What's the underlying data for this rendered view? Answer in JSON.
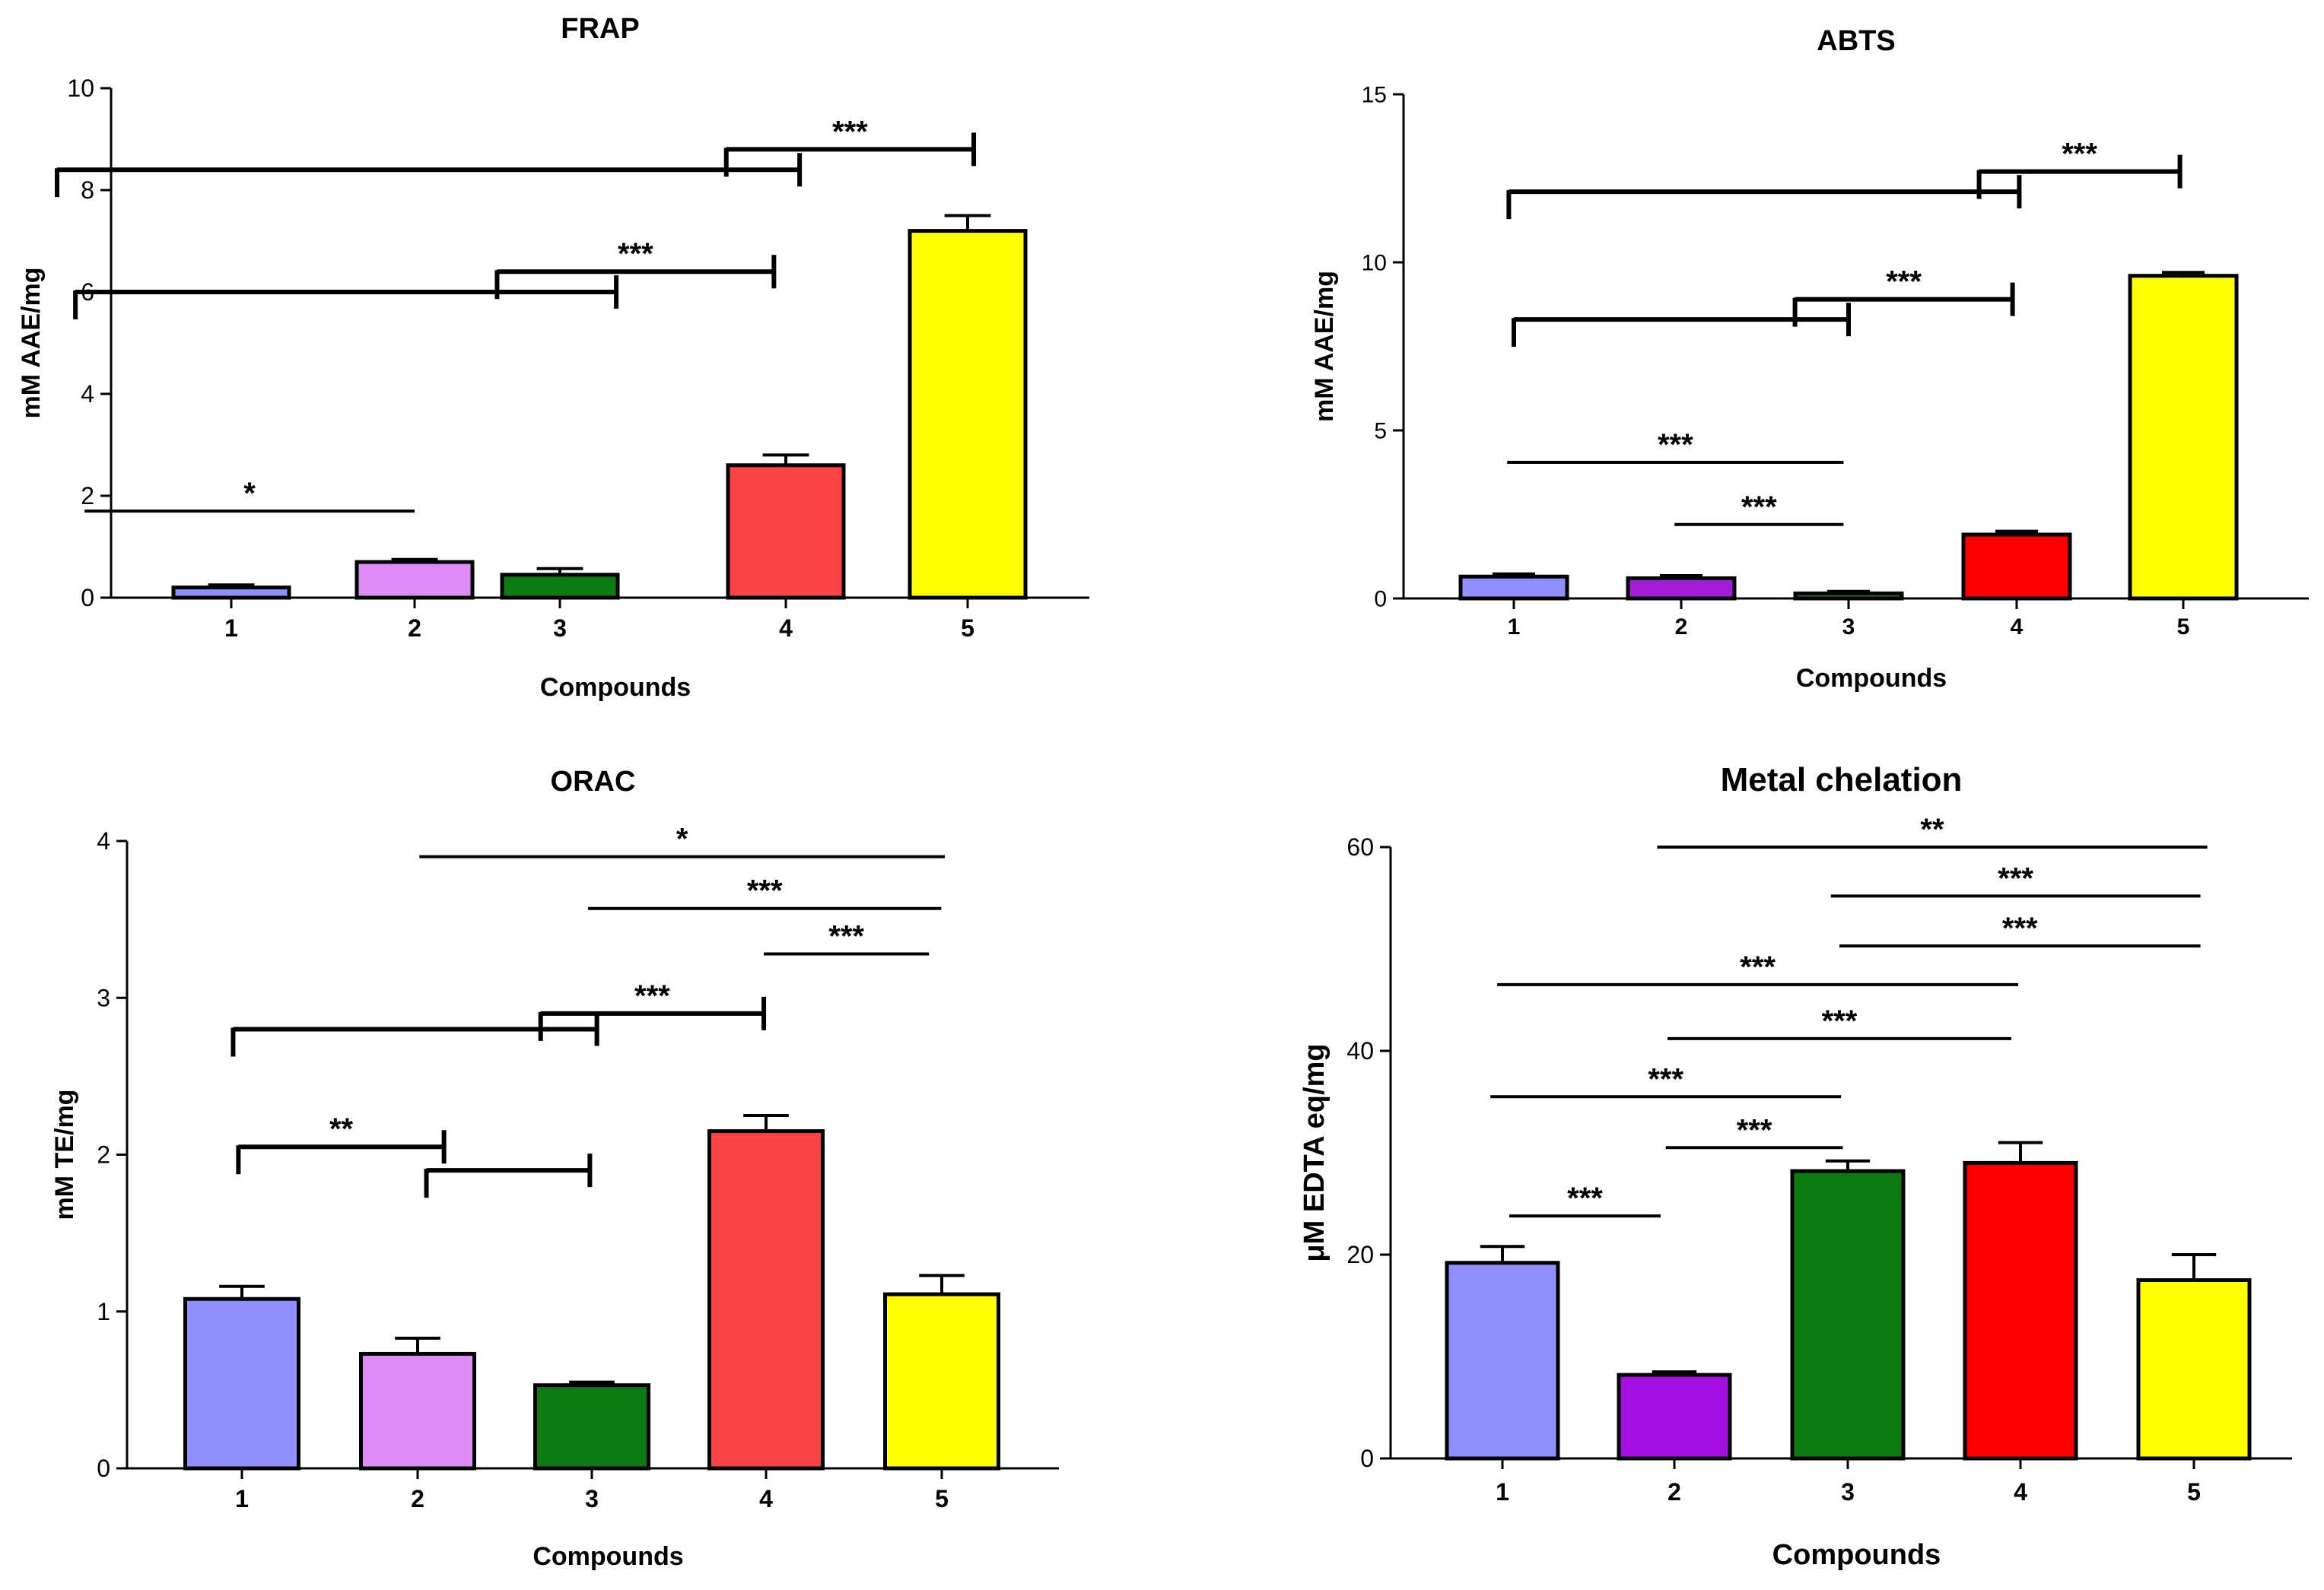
{
  "chart_data": [
    {
      "id": "frap",
      "type": "bar",
      "title": "FRAP",
      "xlabel": "Compounds",
      "ylabel": "mM AAE/mg",
      "ylim": [
        0,
        10
      ],
      "yticks": [
        0,
        2,
        4,
        6,
        8,
        10
      ],
      "categories": [
        "1",
        "2",
        "3",
        "4",
        "5"
      ],
      "values": [
        0.2,
        0.7,
        0.45,
        2.6,
        7.2
      ],
      "errors": [
        0.05,
        0.05,
        0.12,
        0.2,
        0.3
      ],
      "colors": [
        "#8f8fff",
        "#de8af7",
        "#0c7c12",
        "#fa4346",
        "#ffff00"
      ],
      "significance": [
        {
          "label": "*",
          "from": 0.2,
          "to": 2.0,
          "y": 1.7,
          "style": "line"
        },
        {
          "label": "",
          "from": 0.15,
          "to": 3.1,
          "y": 6.0,
          "style": "bracket"
        },
        {
          "label": "***",
          "from": 2.45,
          "to": 3.96,
          "y": 6.4,
          "style": "bracket"
        },
        {
          "label": "",
          "from": 0.05,
          "to": 4.1,
          "y": 8.4,
          "style": "bracket"
        },
        {
          "label": "***",
          "from": 3.7,
          "to": 5.05,
          "y": 8.8,
          "style": "bracket"
        }
      ]
    },
    {
      "id": "abts",
      "type": "bar",
      "title": "ABTS",
      "xlabel": "Compounds",
      "ylabel": "mM AAE/mg",
      "ylim": [
        0,
        15
      ],
      "yticks": [
        0,
        5,
        10,
        15
      ],
      "categories": [
        "1",
        "2",
        "3",
        "4",
        "5"
      ],
      "values": [
        0.65,
        0.6,
        0.15,
        1.9,
        9.6
      ],
      "errors": [
        0.08,
        0.08,
        0.06,
        0.1,
        0.1
      ],
      "colors": [
        "#8f8fff",
        "#a41bd8",
        "#0c7c12",
        "#ff0000",
        "#ffff00"
      ],
      "significance": [
        {
          "label": "***",
          "from": 0.96,
          "to": 2.97,
          "y": 4.05,
          "style": "line"
        },
        {
          "label": "***",
          "from": 1.96,
          "to": 2.97,
          "y": 2.2,
          "style": "line"
        },
        {
          "label": "",
          "from": 1.0,
          "to": 3.0,
          "y": 8.3,
          "style": "bracket"
        },
        {
          "label": "***",
          "from": 2.68,
          "to": 3.98,
          "y": 8.9,
          "style": "bracket"
        },
        {
          "label": "",
          "from": 0.97,
          "to": 4.02,
          "y": 12.1,
          "style": "bracket"
        },
        {
          "label": "***",
          "from": 3.78,
          "to": 4.98,
          "y": 12.7,
          "style": "bracket"
        }
      ]
    },
    {
      "id": "orac",
      "type": "bar",
      "title": "ORAC",
      "xlabel": "Compounds",
      "ylabel": "mM TE/mg",
      "ylim": [
        0,
        4
      ],
      "yticks": [
        0,
        1,
        2,
        3,
        4
      ],
      "categories": [
        "1",
        "2",
        "3",
        "4",
        "5"
      ],
      "values": [
        1.08,
        0.73,
        0.53,
        2.15,
        1.11
      ],
      "errors": [
        0.08,
        0.1,
        0.02,
        0.1,
        0.12
      ],
      "colors": [
        "#8f8fff",
        "#de8af7",
        "#0c7c12",
        "#fa4346",
        "#ffff00"
      ],
      "significance": [
        {
          "label": "**",
          "from": 0.98,
          "to": 2.15,
          "y": 2.05,
          "style": "bracket"
        },
        {
          "label": "",
          "from": 2.05,
          "to": 2.98,
          "y": 1.9,
          "style": "bracket"
        },
        {
          "label": "",
          "from": 0.95,
          "to": 3.02,
          "y": 2.8,
          "style": "bracket"
        },
        {
          "label": "***",
          "from": 2.7,
          "to": 3.97,
          "y": 2.9,
          "style": "bracket"
        },
        {
          "label": "***",
          "from": 3.97,
          "to": 4.91,
          "y": 3.28,
          "style": "line"
        },
        {
          "label": "***",
          "from": 2.97,
          "to": 4.98,
          "y": 3.57,
          "style": "line"
        },
        {
          "label": "*",
          "from": 2.01,
          "to": 5.0,
          "y": 3.9,
          "style": "line"
        }
      ]
    },
    {
      "id": "metal",
      "type": "bar",
      "title": "Metal chelation",
      "xlabel": "Compounds",
      "ylabel": "μM EDTA eq/mg",
      "ylim": [
        0,
        60
      ],
      "yticks": [
        0,
        20,
        40,
        60
      ],
      "categories": [
        "1",
        "2",
        "3",
        "4",
        "5"
      ],
      "values": [
        19.2,
        8.2,
        28.2,
        29.0,
        17.5
      ],
      "errors": [
        1.6,
        0.3,
        1.0,
        2.0,
        2.5
      ],
      "colors": [
        "#8f8fff",
        "#a60fe1",
        "#0c7c12",
        "#ff0000",
        "#ffff00"
      ],
      "significance": [
        {
          "label": "***",
          "from": 1.04,
          "to": 1.92,
          "y": 23.8,
          "style": "line"
        },
        {
          "label": "***",
          "from": 1.95,
          "to": 2.98,
          "y": 30.5,
          "style": "line"
        },
        {
          "label": "***",
          "from": 0.93,
          "to": 2.97,
          "y": 35.5,
          "style": "line"
        },
        {
          "label": "***",
          "from": 1.96,
          "to": 3.96,
          "y": 41.2,
          "style": "line"
        },
        {
          "label": "***",
          "from": 0.97,
          "to": 4.0,
          "y": 46.5,
          "style": "line"
        },
        {
          "label": "***",
          "from": 2.96,
          "to": 5.06,
          "y": 50.3,
          "style": "line"
        },
        {
          "label": "***",
          "from": 2.91,
          "to": 5.06,
          "y": 55.2,
          "style": "line"
        },
        {
          "label": "**",
          "from": 1.9,
          "to": 5.1,
          "y": 60.0,
          "style": "line"
        }
      ]
    }
  ]
}
